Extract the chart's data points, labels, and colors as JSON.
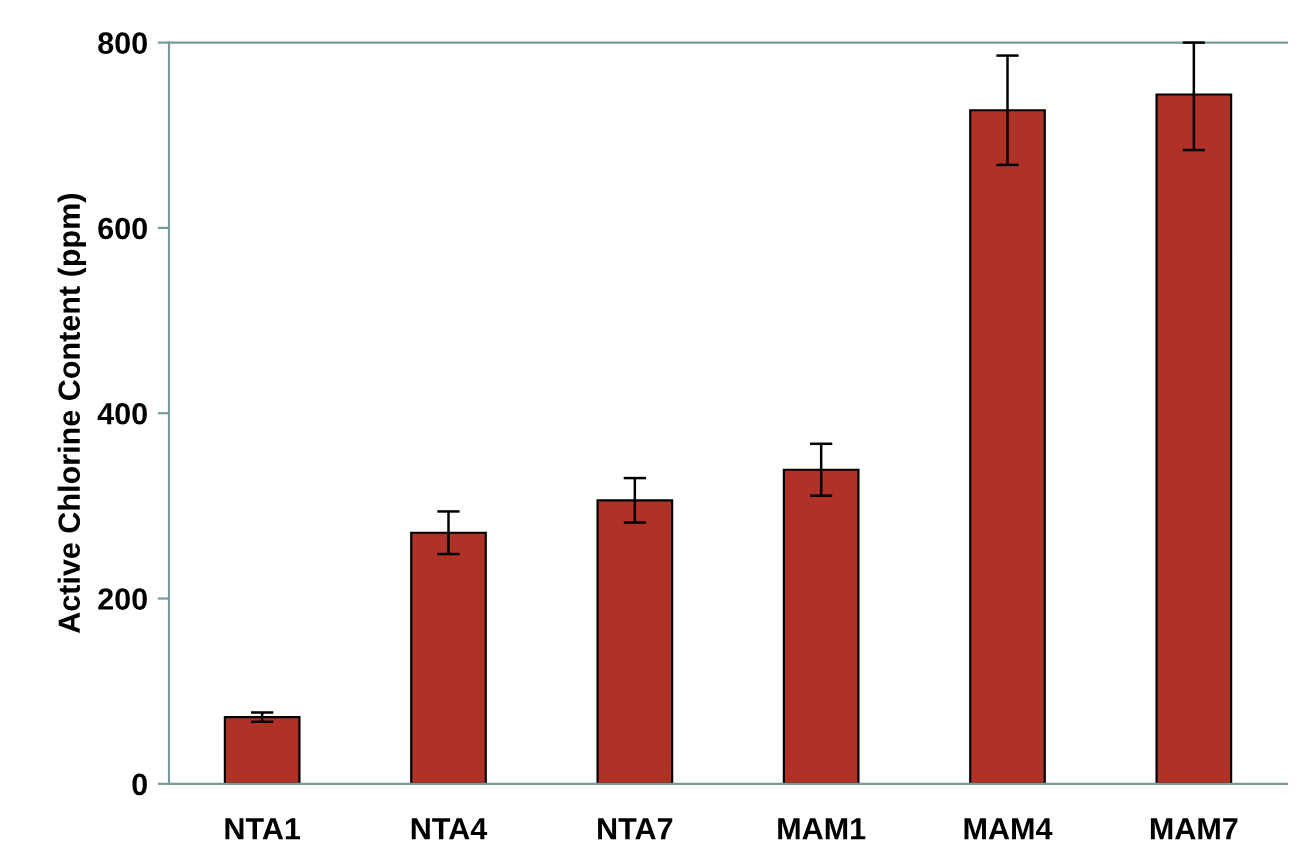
{
  "chart_data": {
    "type": "bar",
    "ylabel": "Active Chlorine Content (ppm)",
    "categories": [
      "NTA1",
      "NTA4",
      "NTA7",
      "MAM1",
      "MAM4",
      "MAM7"
    ],
    "values": [
      72,
      271,
      306,
      339,
      727,
      744
    ],
    "errors": [
      5,
      23,
      24,
      28,
      59,
      [
        684,
        800
      ]
    ],
    "color": "#b03226",
    "ylim": [
      0,
      800
    ],
    "yticks": [
      0,
      200,
      400,
      600,
      800
    ],
    "grid": false
  }
}
